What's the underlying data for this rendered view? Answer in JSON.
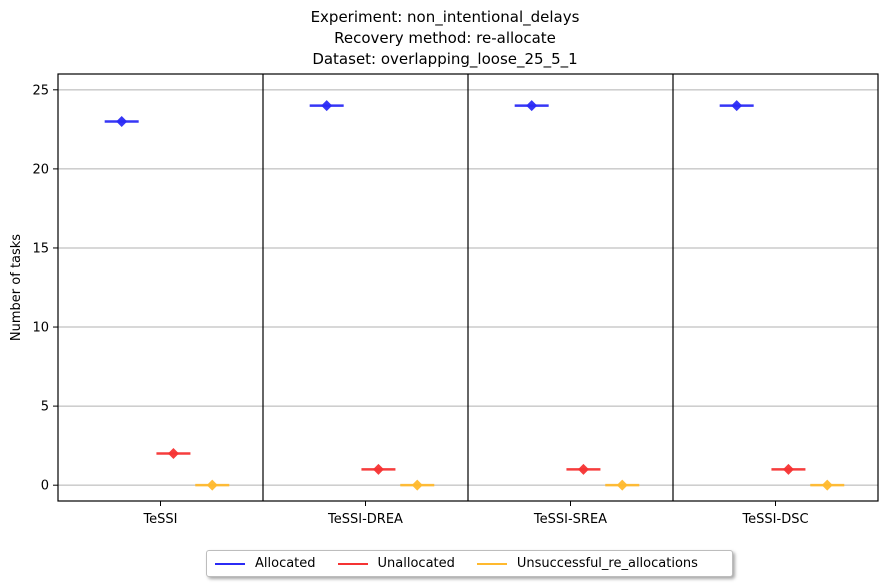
{
  "chart_data": {
    "type": "scatter",
    "title_lines": [
      "Experiment: non_intentional_delays",
      "Recovery method: re-allocate",
      "Dataset: overlapping_loose_25_5_1"
    ],
    "xlabel": "",
    "ylabel": "Number of tasks",
    "categories": [
      "TeSSI",
      "TeSSI-DREA",
      "TeSSI-SREA",
      "TeSSI-DSC"
    ],
    "ylim": [
      -1,
      26
    ],
    "yticks": [
      0,
      5,
      10,
      15,
      20,
      25
    ],
    "grid": "horizontal",
    "legend_placement": "bottom-center",
    "series": [
      {
        "name": "Allocated",
        "color": "#2b2bf5",
        "values": [
          23,
          24,
          24,
          24
        ]
      },
      {
        "name": "Unallocated",
        "color": "#f53333",
        "values": [
          2,
          1,
          1,
          1
        ]
      },
      {
        "name": "Unsuccessful_re_allocations",
        "color": "#ffb92e",
        "values": [
          0,
          0,
          0,
          0
        ]
      }
    ]
  }
}
